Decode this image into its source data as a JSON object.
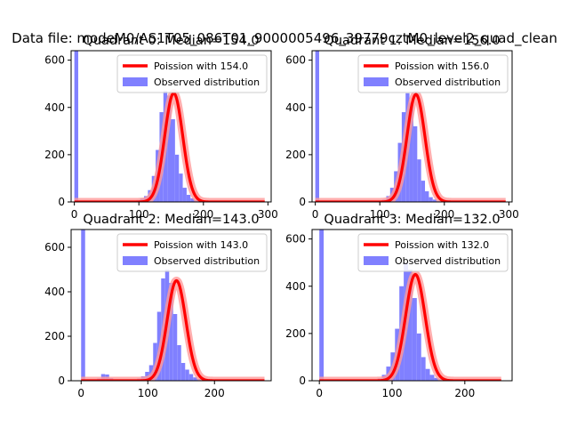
{
  "suptitle": "Data file: modeM0/AS1T05_086T01_9000005496_39779cztM0_level2_quad_clean",
  "colors": {
    "bar": "#8080ff",
    "curve": "#ff0000",
    "curve_halo": "#ff9a9a",
    "axis": "#000000",
    "background": "#ffffff"
  },
  "chart_data": [
    {
      "type": "bar",
      "title": "Quadrant 0: Median=154.0",
      "median": 154.0,
      "legend": [
        "Poission with 154.0",
        "Observed distribution"
      ],
      "xlim": [
        -5,
        305
      ],
      "ylim": [
        0,
        640
      ],
      "xticks": [
        0,
        100,
        200,
        300
      ],
      "xtick_labels": [
        "0",
        "100",
        "200",
        "300"
      ],
      "yticks": [
        0,
        200,
        400,
        600
      ],
      "ytick_labels": [
        "0",
        "200",
        "400",
        "600"
      ],
      "spike": {
        "x0": 0,
        "x1": 6,
        "value": 640
      },
      "bins": {
        "start": 96,
        "width": 6,
        "values": [
          8,
          15,
          25,
          50,
          110,
          220,
          380,
          470,
          450,
          350,
          200,
          120,
          60,
          30,
          15,
          8,
          4,
          2
        ]
      },
      "curve": {
        "mean": 154.0,
        "sigma": 14.0,
        "peak": 460,
        "x_start": 0,
        "x_end": 295
      }
    },
    {
      "type": "bar",
      "title": "Quadrant 1: Median=156.0",
      "median": 156.0,
      "legend": [
        "Poission with 156.0",
        "Observed distribution"
      ],
      "xlim": [
        -5,
        305
      ],
      "ylim": [
        0,
        640
      ],
      "xticks": [
        0,
        100,
        200,
        300
      ],
      "xtick_labels": [
        "0",
        "100",
        "200",
        "300"
      ],
      "yticks": [
        0,
        200,
        400,
        600
      ],
      "ytick_labels": [
        "0",
        "200",
        "400",
        "600"
      ],
      "spike": {
        "x0": 0,
        "x1": 6,
        "value": 640
      },
      "bins": {
        "start": 104,
        "width": 6,
        "values": [
          10,
          25,
          60,
          130,
          250,
          380,
          460,
          420,
          320,
          180,
          90,
          45,
          20,
          10,
          5,
          2
        ]
      },
      "curve": {
        "mean": 156.0,
        "sigma": 14.0,
        "peak": 455,
        "x_start": 0,
        "x_end": 295
      }
    },
    {
      "type": "bar",
      "title": "Quadrant 2: Median=143.0",
      "median": 143.0,
      "legend": [
        "Poission with 143.0",
        "Observed distribution"
      ],
      "xlim": [
        -15,
        285
      ],
      "ylim": [
        0,
        680
      ],
      "xticks": [
        0,
        100,
        200
      ],
      "xtick_labels": [
        "0",
        "100",
        "200"
      ],
      "yticks": [
        0,
        200,
        400,
        600
      ],
      "ytick_labels": [
        "0",
        "200",
        "400",
        "600"
      ],
      "spike": {
        "x0": 0,
        "x1": 6,
        "value": 680
      },
      "bins": {
        "start": 24,
        "width": 6,
        "values": [
          10,
          30,
          28,
          12,
          6,
          4,
          3,
          2,
          3,
          5,
          10,
          20,
          40,
          70,
          170,
          310,
          460,
          500,
          440,
          300,
          160,
          80,
          50,
          30,
          15,
          8,
          4,
          2
        ]
      },
      "curve": {
        "mean": 143.0,
        "sigma": 14.0,
        "peak": 450,
        "x_start": 0,
        "x_end": 275
      }
    },
    {
      "type": "bar",
      "title": "Quadrant 3: Median=132.0",
      "median": 132.0,
      "legend": [
        "Poission with 132.0",
        "Observed distribution"
      ],
      "xlim": [
        -10,
        265
      ],
      "ylim": [
        0,
        640
      ],
      "xticks": [
        0,
        100,
        200
      ],
      "xtick_labels": [
        "0",
        "100",
        "200"
      ],
      "yticks": [
        0,
        200,
        400,
        600
      ],
      "ytick_labels": [
        "0",
        "200",
        "400",
        "600"
      ],
      "spike": {
        "x0": 0,
        "x1": 6,
        "value": 640
      },
      "bins": {
        "start": 80,
        "width": 6,
        "values": [
          10,
          25,
          60,
          120,
          220,
          400,
          500,
          470,
          350,
          200,
          100,
          50,
          25,
          12,
          6,
          3
        ]
      },
      "curve": {
        "mean": 132.0,
        "sigma": 13.5,
        "peak": 450,
        "x_start": 0,
        "x_end": 250
      }
    }
  ]
}
